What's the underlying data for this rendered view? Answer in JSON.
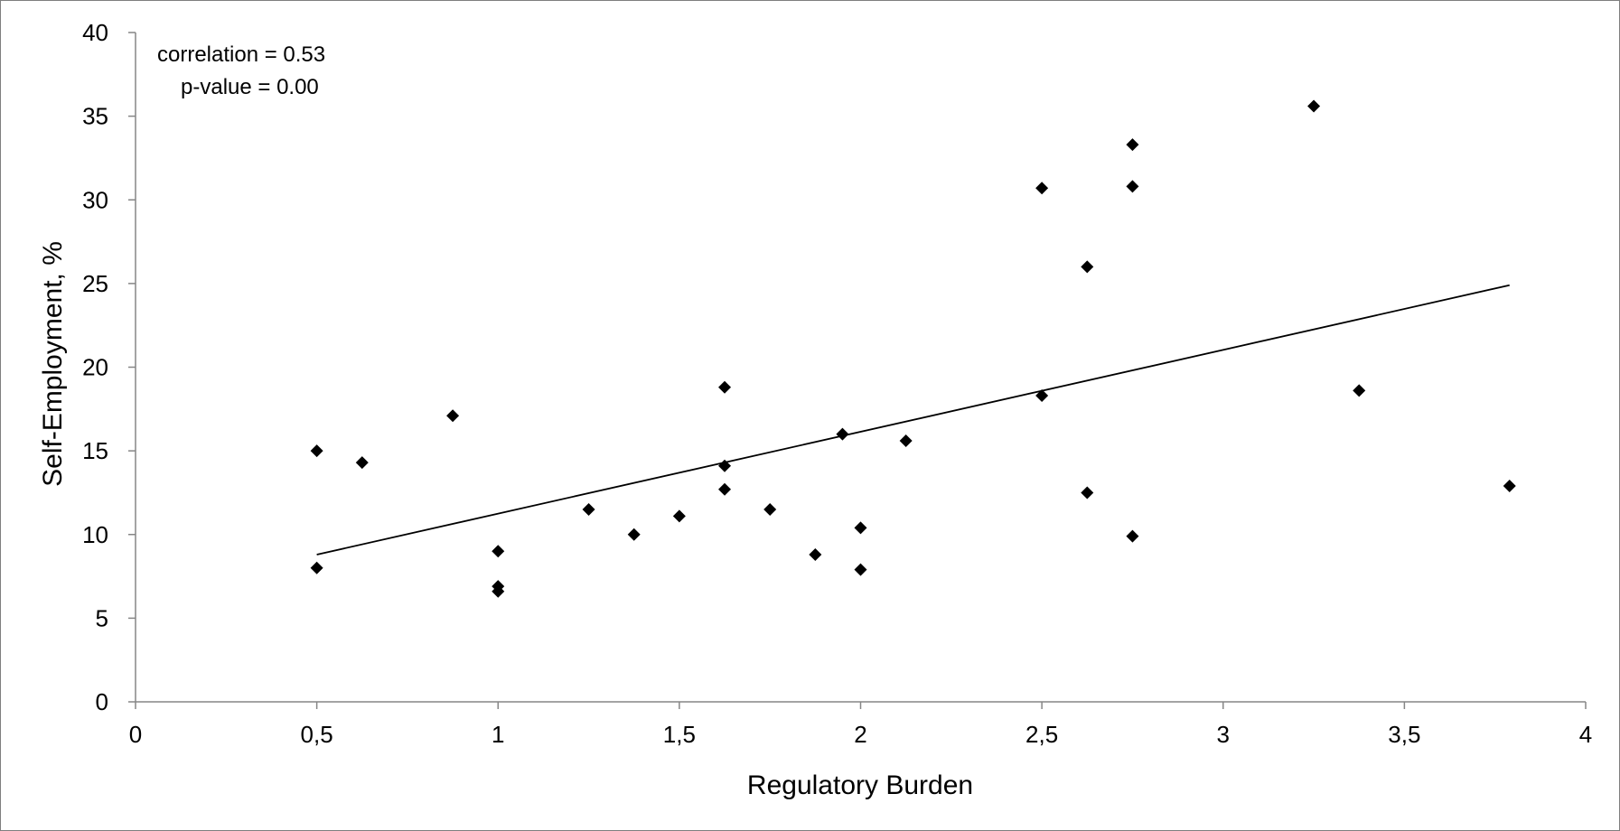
{
  "chart_data": {
    "type": "scatter",
    "title": "",
    "xlabel": "Regulatory Burden",
    "ylabel": "Self-Employment, %",
    "xlim": [
      0,
      4
    ],
    "ylim": [
      0,
      40
    ],
    "x_ticks": [
      "0",
      "0,5",
      "1",
      "1,5",
      "2",
      "2,5",
      "3",
      "3,5",
      "4"
    ],
    "y_ticks": [
      "0",
      "5",
      "10",
      "15",
      "20",
      "25",
      "30",
      "35",
      "40"
    ],
    "grid": false,
    "legend": "none",
    "marker": "diamond",
    "marker_color": "#000000",
    "annotations": [
      "correlation =  0.53",
      "p-value = 0.00"
    ],
    "points": [
      {
        "x": 0.5,
        "y": 15.0
      },
      {
        "x": 0.5,
        "y": 8.0
      },
      {
        "x": 0.625,
        "y": 14.3
      },
      {
        "x": 0.875,
        "y": 17.1
      },
      {
        "x": 1.0,
        "y": 9.0
      },
      {
        "x": 1.0,
        "y": 6.9
      },
      {
        "x": 1.0,
        "y": 6.6
      },
      {
        "x": 1.25,
        "y": 11.5
      },
      {
        "x": 1.375,
        "y": 10.0
      },
      {
        "x": 1.5,
        "y": 11.1
      },
      {
        "x": 1.625,
        "y": 18.8
      },
      {
        "x": 1.625,
        "y": 14.1
      },
      {
        "x": 1.625,
        "y": 12.7
      },
      {
        "x": 1.75,
        "y": 11.5
      },
      {
        "x": 1.875,
        "y": 8.8
      },
      {
        "x": 1.95,
        "y": 16.0
      },
      {
        "x": 2.0,
        "y": 10.4
      },
      {
        "x": 2.0,
        "y": 7.9
      },
      {
        "x": 2.125,
        "y": 15.6
      },
      {
        "x": 2.5,
        "y": 30.7
      },
      {
        "x": 2.5,
        "y": 18.3
      },
      {
        "x": 2.625,
        "y": 26.0
      },
      {
        "x": 2.625,
        "y": 12.5
      },
      {
        "x": 2.75,
        "y": 33.3
      },
      {
        "x": 2.75,
        "y": 30.8
      },
      {
        "x": 2.75,
        "y": 9.9
      },
      {
        "x": 3.25,
        "y": 35.6
      },
      {
        "x": 3.375,
        "y": 18.6
      },
      {
        "x": 3.79,
        "y": 12.9
      }
    ],
    "trendline": {
      "x": [
        0.5,
        3.79
      ],
      "y": [
        8.8,
        24.9
      ]
    }
  }
}
